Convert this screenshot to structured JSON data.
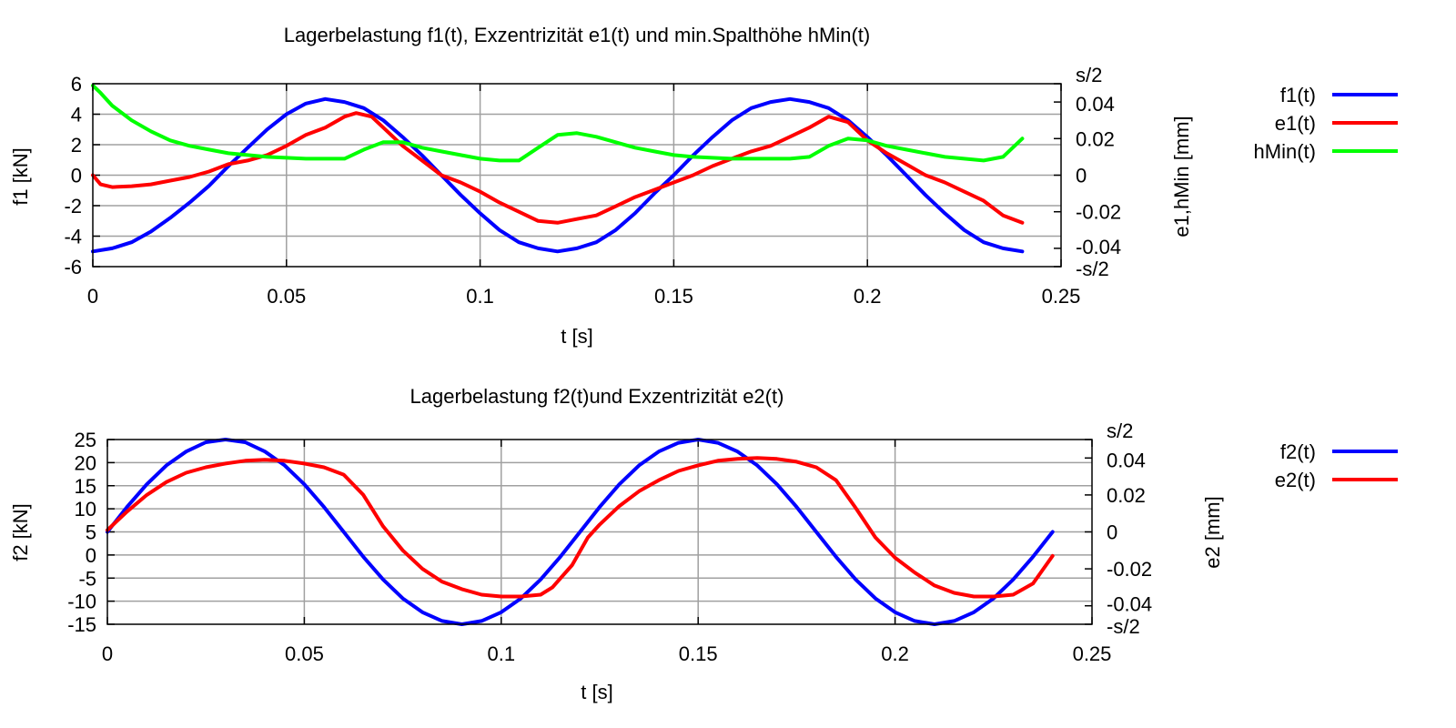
{
  "chart_data": [
    {
      "type": "line",
      "title": "Lagerbelastung f1(t), Exzentrizität e1(t) und min.Spalthöhe hMin(t)",
      "xlabel": "t [s]",
      "ylabel": "f1 [kN]",
      "y2label": "e1,hMin [mm]",
      "xlim": [
        0,
        0.25
      ],
      "ylim": [
        -6,
        6
      ],
      "y2lim": [
        -0.05,
        0.05
      ],
      "grid": true,
      "legend_position": "right",
      "x_ticks": [
        "0",
        "0.05",
        "0.1",
        "0.15",
        "0.2",
        "0.25"
      ],
      "y_ticks": [
        "-6",
        "-4",
        "-2",
        "0",
        "2",
        "4",
        "6"
      ],
      "y2_ticks": [
        "-s/2",
        "-0.04",
        "-0.02",
        "0",
        "0.02",
        "0.04",
        "s/2"
      ],
      "series": [
        {
          "name": "f1(t)",
          "axis": "y",
          "color": "#0000ff",
          "points": [
            [
              0,
              -5
            ],
            [
              0.005,
              -4.8
            ],
            [
              0.01,
              -4.4
            ],
            [
              0.015,
              -3.7
            ],
            [
              0.02,
              -2.8
            ],
            [
              0.025,
              -1.8
            ],
            [
              0.03,
              -0.7
            ],
            [
              0.035,
              0.6
            ],
            [
              0.04,
              1.8
            ],
            [
              0.045,
              3
            ],
            [
              0.05,
              4
            ],
            [
              0.055,
              4.7
            ],
            [
              0.06,
              5
            ],
            [
              0.065,
              4.8
            ],
            [
              0.07,
              4.4
            ],
            [
              0.075,
              3.6
            ],
            [
              0.08,
              2.5
            ],
            [
              0.085,
              1.3
            ],
            [
              0.09,
              0
            ],
            [
              0.095,
              -1.3
            ],
            [
              0.1,
              -2.5
            ],
            [
              0.105,
              -3.6
            ],
            [
              0.11,
              -4.4
            ],
            [
              0.115,
              -4.8
            ],
            [
              0.12,
              -5
            ],
            [
              0.125,
              -4.8
            ],
            [
              0.13,
              -4.4
            ],
            [
              0.135,
              -3.6
            ],
            [
              0.14,
              -2.5
            ],
            [
              0.145,
              -1.2
            ],
            [
              0.15,
              0
            ],
            [
              0.155,
              1.3
            ],
            [
              0.16,
              2.5
            ],
            [
              0.165,
              3.6
            ],
            [
              0.17,
              4.4
            ],
            [
              0.175,
              4.8
            ],
            [
              0.18,
              5
            ],
            [
              0.185,
              4.8
            ],
            [
              0.19,
              4.4
            ],
            [
              0.195,
              3.6
            ],
            [
              0.2,
              2.5
            ],
            [
              0.205,
              1.3
            ],
            [
              0.21,
              0
            ],
            [
              0.215,
              -1.3
            ],
            [
              0.22,
              -2.5
            ],
            [
              0.225,
              -3.6
            ],
            [
              0.23,
              -4.4
            ],
            [
              0.235,
              -4.8
            ],
            [
              0.24,
              -5
            ]
          ]
        },
        {
          "name": "e1(t)",
          "axis": "y2",
          "color": "#ff0000",
          "points": [
            [
              0,
              0
            ],
            [
              0.002,
              -0.005
            ],
            [
              0.005,
              -0.0065
            ],
            [
              0.01,
              -0.006
            ],
            [
              0.015,
              -0.005
            ],
            [
              0.02,
              -0.003
            ],
            [
              0.025,
              -0.001
            ],
            [
              0.03,
              0.002
            ],
            [
              0.035,
              0.006
            ],
            [
              0.04,
              0.008
            ],
            [
              0.045,
              0.011
            ],
            [
              0.05,
              0.016
            ],
            [
              0.055,
              0.022
            ],
            [
              0.06,
              0.026
            ],
            [
              0.065,
              0.032
            ],
            [
              0.068,
              0.034
            ],
            [
              0.072,
              0.032
            ],
            [
              0.075,
              0.026
            ],
            [
              0.08,
              0.016
            ],
            [
              0.085,
              0.008
            ],
            [
              0.09,
              0
            ],
            [
              0.095,
              -0.004
            ],
            [
              0.1,
              -0.009
            ],
            [
              0.105,
              -0.015
            ],
            [
              0.11,
              -0.02
            ],
            [
              0.115,
              -0.025
            ],
            [
              0.12,
              -0.026
            ],
            [
              0.125,
              -0.024
            ],
            [
              0.13,
              -0.022
            ],
            [
              0.135,
              -0.017
            ],
            [
              0.14,
              -0.012
            ],
            [
              0.145,
              -0.008
            ],
            [
              0.15,
              -0.004
            ],
            [
              0.155,
              0
            ],
            [
              0.16,
              0.005
            ],
            [
              0.165,
              0.009
            ],
            [
              0.17,
              0.013
            ],
            [
              0.175,
              0.016
            ],
            [
              0.18,
              0.021
            ],
            [
              0.185,
              0.026
            ],
            [
              0.19,
              0.032
            ],
            [
              0.195,
              0.029
            ],
            [
              0.2,
              0.019
            ],
            [
              0.205,
              0.012
            ],
            [
              0.21,
              0.006
            ],
            [
              0.215,
              0
            ],
            [
              0.22,
              -0.004
            ],
            [
              0.225,
              -0.009
            ],
            [
              0.23,
              -0.014
            ],
            [
              0.235,
              -0.022
            ],
            [
              0.24,
              -0.026
            ]
          ]
        },
        {
          "name": "hMin(t)",
          "axis": "y2",
          "color": "#00ff00",
          "points": [
            [
              0,
              0.049
            ],
            [
              0.002,
              0.045
            ],
            [
              0.005,
              0.038
            ],
            [
              0.01,
              0.03
            ],
            [
              0.015,
              0.024
            ],
            [
              0.02,
              0.019
            ],
            [
              0.025,
              0.016
            ],
            [
              0.03,
              0.014
            ],
            [
              0.035,
              0.012
            ],
            [
              0.04,
              0.011
            ],
            [
              0.045,
              0.01
            ],
            [
              0.05,
              0.0095
            ],
            [
              0.055,
              0.009
            ],
            [
              0.06,
              0.009
            ],
            [
              0.065,
              0.009
            ],
            [
              0.07,
              0.014
            ],
            [
              0.075,
              0.018
            ],
            [
              0.08,
              0.018
            ],
            [
              0.085,
              0.015
            ],
            [
              0.09,
              0.013
            ],
            [
              0.095,
              0.011
            ],
            [
              0.1,
              0.009
            ],
            [
              0.105,
              0.008
            ],
            [
              0.11,
              0.008
            ],
            [
              0.115,
              0.015
            ],
            [
              0.12,
              0.022
            ],
            [
              0.125,
              0.023
            ],
            [
              0.13,
              0.021
            ],
            [
              0.135,
              0.018
            ],
            [
              0.14,
              0.015
            ],
            [
              0.145,
              0.013
            ],
            [
              0.15,
              0.011
            ],
            [
              0.155,
              0.01
            ],
            [
              0.16,
              0.0095
            ],
            [
              0.165,
              0.009
            ],
            [
              0.17,
              0.009
            ],
            [
              0.175,
              0.009
            ],
            [
              0.18,
              0.009
            ],
            [
              0.185,
              0.01
            ],
            [
              0.19,
              0.016
            ],
            [
              0.195,
              0.02
            ],
            [
              0.2,
              0.019
            ],
            [
              0.205,
              0.016
            ],
            [
              0.21,
              0.014
            ],
            [
              0.215,
              0.012
            ],
            [
              0.22,
              0.01
            ],
            [
              0.225,
              0.009
            ],
            [
              0.23,
              0.008
            ],
            [
              0.235,
              0.01
            ],
            [
              0.24,
              0.02
            ]
          ]
        }
      ]
    },
    {
      "type": "line",
      "title": "Lagerbelastung f2(t)und Exzentrizität e2(t)",
      "xlabel": "t [s]",
      "ylabel": "f2 [kN]",
      "y2label": "e2 [mm]",
      "xlim": [
        0,
        0.25
      ],
      "ylim": [
        -15,
        25
      ],
      "y2lim": [
        -0.05,
        0.05
      ],
      "grid": true,
      "legend_position": "right",
      "x_ticks": [
        "0",
        "0.05",
        "0.1",
        "0.15",
        "0.2",
        "0.25"
      ],
      "y_ticks": [
        "-15",
        "-10",
        "-5",
        "0",
        "5",
        "10",
        "15",
        "20",
        "25"
      ],
      "y2_ticks": [
        "-s/2",
        "-0.04",
        "-0.02",
        "0",
        "0.02",
        "0.04",
        "s/2"
      ],
      "series": [
        {
          "name": "f2(t)",
          "axis": "y",
          "color": "#0000ff",
          "points": [
            [
              0,
              5
            ],
            [
              0.005,
              10.4
            ],
            [
              0.01,
              15.3
            ],
            [
              0.015,
              19.4
            ],
            [
              0.02,
              22.4
            ],
            [
              0.025,
              24.4
            ],
            [
              0.03,
              25
            ],
            [
              0.035,
              24.4
            ],
            [
              0.04,
              22.4
            ],
            [
              0.045,
              19.4
            ],
            [
              0.05,
              15.3
            ],
            [
              0.055,
              10.4
            ],
            [
              0.06,
              5
            ],
            [
              0.065,
              -0.4
            ],
            [
              0.07,
              -5.3
            ],
            [
              0.075,
              -9.4
            ],
            [
              0.08,
              -12.4
            ],
            [
              0.085,
              -14.3
            ],
            [
              0.09,
              -15
            ],
            [
              0.095,
              -14.3
            ],
            [
              0.1,
              -12.4
            ],
            [
              0.105,
              -9.4
            ],
            [
              0.11,
              -5.3
            ],
            [
              0.115,
              -0.4
            ],
            [
              0.12,
              5
            ],
            [
              0.125,
              10.4
            ],
            [
              0.13,
              15.3
            ],
            [
              0.135,
              19.4
            ],
            [
              0.14,
              22.4
            ],
            [
              0.145,
              24.3
            ],
            [
              0.15,
              25
            ],
            [
              0.155,
              24.3
            ],
            [
              0.16,
              22.4
            ],
            [
              0.165,
              19.4
            ],
            [
              0.17,
              15.3
            ],
            [
              0.175,
              10.4
            ],
            [
              0.18,
              5
            ],
            [
              0.185,
              -0.4
            ],
            [
              0.19,
              -5.3
            ],
            [
              0.195,
              -9.4
            ],
            [
              0.2,
              -12.4
            ],
            [
              0.205,
              -14.3
            ],
            [
              0.21,
              -15
            ],
            [
              0.215,
              -14.3
            ],
            [
              0.22,
              -12.4
            ],
            [
              0.225,
              -9.4
            ],
            [
              0.23,
              -5.3
            ],
            [
              0.235,
              -0.4
            ],
            [
              0.24,
              5
            ]
          ]
        },
        {
          "name": "e2(t)",
          "axis": "y2",
          "color": "#ff0000",
          "points": [
            [
              0,
              0.001
            ],
            [
              0.005,
              0.011
            ],
            [
              0.01,
              0.02
            ],
            [
              0.015,
              0.027
            ],
            [
              0.02,
              0.032
            ],
            [
              0.025,
              0.035
            ],
            [
              0.03,
              0.037
            ],
            [
              0.035,
              0.0385
            ],
            [
              0.04,
              0.039
            ],
            [
              0.045,
              0.0385
            ],
            [
              0.05,
              0.037
            ],
            [
              0.055,
              0.035
            ],
            [
              0.06,
              0.031
            ],
            [
              0.065,
              0.02
            ],
            [
              0.07,
              0.003
            ],
            [
              0.075,
              -0.01
            ],
            [
              0.08,
              -0.02
            ],
            [
              0.085,
              -0.027
            ],
            [
              0.09,
              -0.031
            ],
            [
              0.095,
              -0.034
            ],
            [
              0.1,
              -0.035
            ],
            [
              0.105,
              -0.035
            ],
            [
              0.11,
              -0.034
            ],
            [
              0.113,
              -0.03
            ],
            [
              0.118,
              -0.018
            ],
            [
              0.122,
              -0.003
            ],
            [
              0.125,
              0.004
            ],
            [
              0.13,
              0.014
            ],
            [
              0.135,
              0.022
            ],
            [
              0.14,
              0.028
            ],
            [
              0.145,
              0.033
            ],
            [
              0.15,
              0.036
            ],
            [
              0.155,
              0.0385
            ],
            [
              0.16,
              0.0395
            ],
            [
              0.165,
              0.04
            ],
            [
              0.17,
              0.0395
            ],
            [
              0.175,
              0.038
            ],
            [
              0.18,
              0.035
            ],
            [
              0.185,
              0.028
            ],
            [
              0.19,
              0.013
            ],
            [
              0.195,
              -0.003
            ],
            [
              0.2,
              -0.014
            ],
            [
              0.205,
              -0.022
            ],
            [
              0.21,
              -0.029
            ],
            [
              0.215,
              -0.033
            ],
            [
              0.22,
              -0.035
            ],
            [
              0.225,
              -0.035
            ],
            [
              0.23,
              -0.034
            ],
            [
              0.235,
              -0.028
            ],
            [
              0.24,
              -0.013
            ]
          ]
        }
      ]
    }
  ]
}
